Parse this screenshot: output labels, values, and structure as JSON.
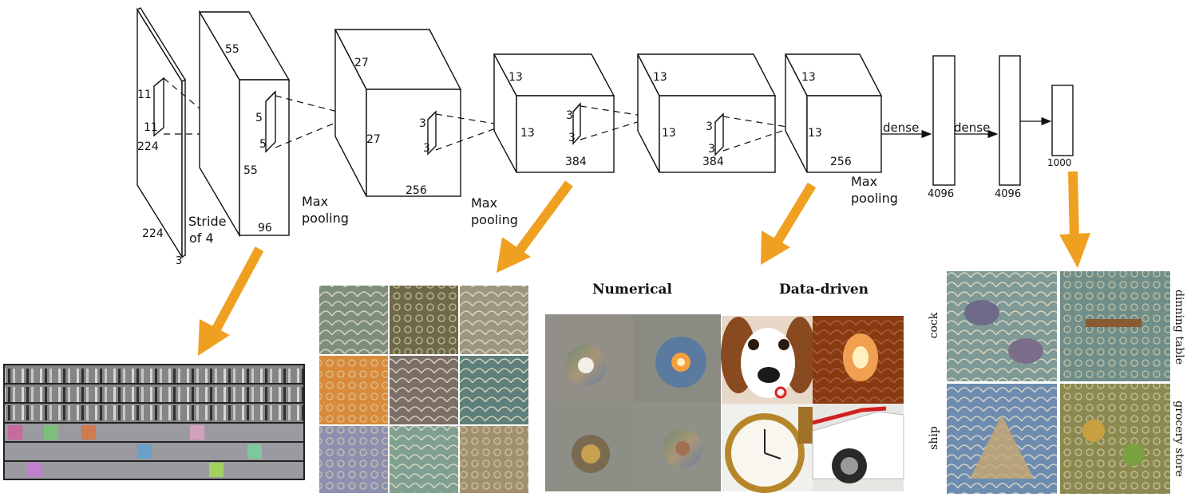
{
  "network": {
    "input": {
      "height": "224",
      "width": "224",
      "depth": "3",
      "kernel_h": "11",
      "kernel_w": "11"
    },
    "stride": {
      "line1": "Stride",
      "line2": "of 4"
    },
    "conv1": {
      "top": "55",
      "side": "55",
      "depth": "96",
      "kernel_h": "5",
      "kernel_w": "5"
    },
    "pool1": {
      "line1": "Max",
      "line2": "pooling"
    },
    "conv2": {
      "top": "27",
      "side": "27",
      "depth": "256",
      "kernel_h": "3",
      "kernel_w": "3"
    },
    "pool2": {
      "line1": "Max",
      "line2": "pooling"
    },
    "conv3": {
      "top": "13",
      "side": "13",
      "depth": "384",
      "kernel_h": "3",
      "kernel_w": "3"
    },
    "conv4": {
      "top": "13",
      "side": "13",
      "depth": "384",
      "kernel_h": "3",
      "kernel_w": "3"
    },
    "conv5": {
      "top": "13",
      "side": "13",
      "depth": "256"
    },
    "pool3": {
      "line1": "Max",
      "line2": "pooling"
    },
    "dense1": {
      "label": "dense",
      "size": "4096"
    },
    "dense2": {
      "label": "dense",
      "size": "4096"
    },
    "output": {
      "size": "1000"
    }
  },
  "visualizations": {
    "headers": {
      "numerical": "Numerical",
      "data_driven": "Data-driven"
    },
    "class_labels": {
      "cock": "cock",
      "dinning_table": "dinning table",
      "ship": "ship",
      "grocery_store": "grocery store"
    }
  },
  "colors": {
    "arrow": "#f0a020",
    "line": "#111111",
    "grid_border": "#222222"
  }
}
